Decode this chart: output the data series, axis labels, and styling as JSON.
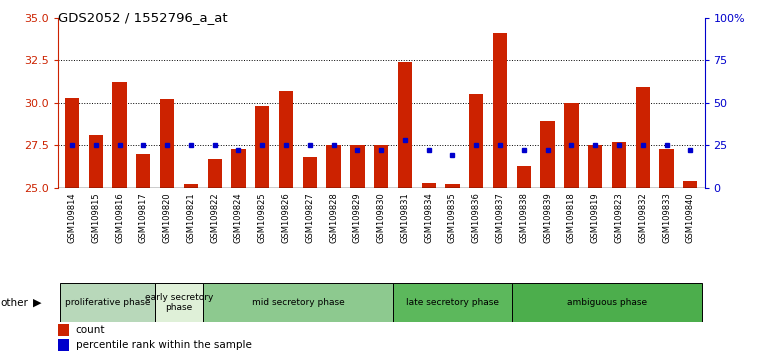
{
  "title": "GDS2052 / 1552796_a_at",
  "samples": [
    "GSM109814",
    "GSM109815",
    "GSM109816",
    "GSM109817",
    "GSM109820",
    "GSM109821",
    "GSM109822",
    "GSM109824",
    "GSM109825",
    "GSM109826",
    "GSM109827",
    "GSM109828",
    "GSM109829",
    "GSM109830",
    "GSM109831",
    "GSM109834",
    "GSM109835",
    "GSM109836",
    "GSM109837",
    "GSM109838",
    "GSM109839",
    "GSM109818",
    "GSM109819",
    "GSM109823",
    "GSM109832",
    "GSM109833",
    "GSM109840"
  ],
  "counts": [
    30.3,
    28.1,
    31.2,
    27.0,
    30.2,
    25.2,
    26.7,
    27.3,
    29.8,
    30.7,
    26.8,
    27.5,
    27.5,
    27.5,
    32.4,
    25.3,
    25.2,
    30.5,
    34.1,
    26.3,
    28.9,
    30.0,
    27.5,
    27.7,
    30.9,
    27.3,
    25.4
  ],
  "percentiles": [
    27.5,
    27.5,
    27.5,
    27.5,
    27.5,
    27.5,
    27.5,
    27.2,
    27.5,
    27.5,
    27.5,
    27.5,
    27.2,
    27.2,
    27.8,
    27.2,
    26.9,
    27.5,
    27.5,
    27.2,
    27.2,
    27.5,
    27.5,
    27.5,
    27.5,
    27.5,
    27.2
  ],
  "phases": [
    {
      "label": "proliferative phase",
      "start": 0,
      "end": 4,
      "color": "#b8d8ba"
    },
    {
      "label": "early secretory\nphase",
      "start": 4,
      "end": 6,
      "color": "#dff0d8"
    },
    {
      "label": "mid secretory phase",
      "start": 6,
      "end": 14,
      "color": "#8dc98f"
    },
    {
      "label": "late secretory phase",
      "start": 14,
      "end": 19,
      "color": "#5cb85c"
    },
    {
      "label": "ambiguous phase",
      "start": 19,
      "end": 27,
      "color": "#4cae4c"
    }
  ],
  "ylim_left": [
    25,
    35
  ],
  "ylim_right": [
    0,
    100
  ],
  "yticks_left": [
    25,
    27.5,
    30,
    32.5,
    35
  ],
  "yticks_right": [
    0,
    25,
    50,
    75,
    100
  ],
  "bar_color": "#cc2200",
  "pct_color": "#0000cc",
  "grid_color": "#000000",
  "tick_bg_color": "#c0c0c0",
  "plot_bg": "#ffffff"
}
